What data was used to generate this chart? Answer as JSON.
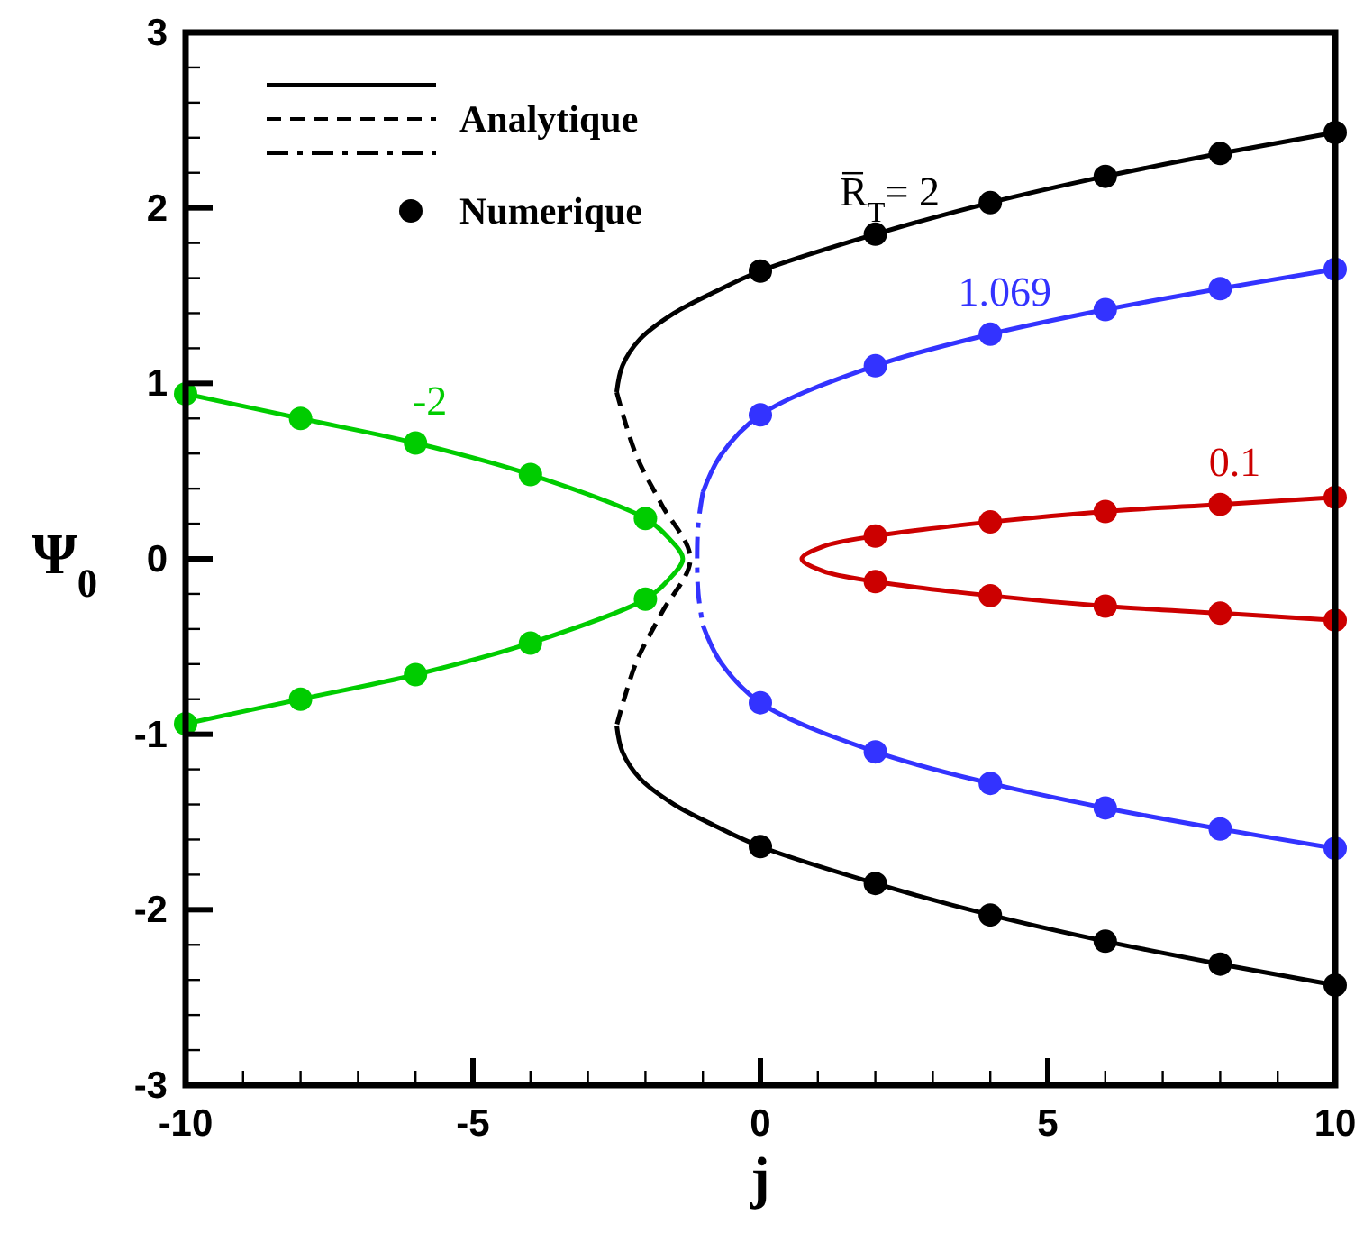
{
  "chart_data": {
    "type": "line",
    "xlabel": "j",
    "ylabel": "Ψ$_{0}$",
    "legend": "top left",
    "xlim": [
      -10,
      10
    ],
    "ylim": [
      -3,
      3
    ],
    "xticks": [
      -10,
      {
        "value": -9,
        "label": null
      },
      {
        "value": -8,
        "label": null
      },
      {
        "value": -7,
        "label": null
      },
      {
        "value": -6,
        "label": null
      },
      -5,
      {
        "value": -4,
        "label": null
      },
      {
        "value": -3,
        "label": null
      },
      {
        "value": -2,
        "label": null
      },
      {
        "value": -1,
        "label": null
      },
      0,
      {
        "value": 1,
        "label": null
      },
      {
        "value": 2,
        "label": null
      },
      {
        "value": 3,
        "label": null
      },
      {
        "value": 4,
        "label": null
      },
      5,
      {
        "value": 6,
        "label": null
      },
      {
        "value": 7,
        "label": null
      },
      {
        "value": 8,
        "label": null
      },
      {
        "value": 9,
        "label": null
      },
      10
    ],
    "yticks": [
      -3,
      {
        "value": -2.8,
        "label": null
      },
      {
        "value": -2.6,
        "label": null
      },
      {
        "value": -2.4,
        "label": null
      },
      {
        "value": -2.2,
        "label": null
      },
      -2,
      {
        "value": -1.8,
        "label": null
      },
      {
        "value": -1.6,
        "label": null
      },
      {
        "value": -1.4,
        "label": null
      },
      {
        "value": -1.2,
        "label": null
      },
      -1,
      {
        "value": -0.8,
        "label": null
      },
      {
        "value": -0.6,
        "label": null
      },
      {
        "value": -0.4,
        "label": null
      },
      {
        "value": -0.2,
        "label": null
      },
      0,
      {
        "value": 0.2,
        "label": null
      },
      {
        "value": 0.4,
        "label": null
      },
      {
        "value": 0.6,
        "label": null
      },
      {
        "value": 0.8,
        "label": null
      },
      1,
      {
        "value": 1.2,
        "label": null
      },
      {
        "value": 1.4,
        "label": null
      },
      {
        "value": 1.6,
        "label": null
      },
      {
        "value": 1.8,
        "label": null
      },
      2,
      {
        "value": 2.2,
        "label": null
      },
      {
        "value": 2.4,
        "label": null
      },
      {
        "value": 2.6,
        "label": null
      },
      {
        "value": 2.8,
        "label": null
      },
      3
    ],
    "series": [
      {
        "line_style": "solid",
        "color": "#000000",
        "x": [
          10,
          8,
          6,
          4,
          2,
          0,
          -0.8,
          -1.5,
          -2.1,
          -2.4,
          -2.5
        ],
        "values": [
          2.43,
          2.31,
          2.18,
          2.03,
          1.85,
          1.64,
          1.52,
          1.4,
          1.25,
          1.1,
          0.95
        ]
      },
      {
        "line_style": "dashed",
        "color": "#000000",
        "x": [
          -2.5,
          -2.16,
          -1.72,
          -1.22,
          -1.72,
          -2.16,
          -2.5
        ],
        "values": [
          0.95,
          0.59,
          0.31,
          0,
          -0.31,
          -0.59,
          -0.95
        ]
      },
      {
        "line_style": "dashdot",
        "color": "#3333ff",
        "x": [
          -1.0,
          -1.08,
          -1.1,
          -1.08,
          -1.0
        ],
        "values": [
          0.38,
          0.2,
          0,
          -0.2,
          -0.38
        ]
      },
      {
        "line_style": "solid",
        "color": "#000000",
        "x": [
          -2.5,
          -2.4,
          -2.1,
          -1.5,
          -0.8,
          0,
          2,
          4,
          6,
          8,
          10
        ],
        "values": [
          -0.95,
          -1.1,
          -1.25,
          -1.4,
          -1.52,
          -1.64,
          -1.85,
          -2.03,
          -2.18,
          -2.31,
          -2.43
        ]
      },
      {
        "line_style": "solid",
        "color": "#3333ff",
        "x": [
          10,
          8,
          6,
          4,
          2,
          0,
          -0.69,
          -1.0
        ],
        "values": [
          1.65,
          1.54,
          1.42,
          1.28,
          1.1,
          0.82,
          0.59,
          0.38
        ]
      },
      {
        "line_style": "solid",
        "color": "#3333ff",
        "x": [
          -1.0,
          -0.69,
          0,
          2,
          4,
          6,
          8,
          10
        ],
        "values": [
          -0.38,
          -0.59,
          -0.82,
          -1.1,
          -1.28,
          -1.42,
          -1.54,
          -1.65
        ]
      },
      {
        "line_style": "solid",
        "color": "#cc0000",
        "x": [
          10,
          8,
          6,
          4,
          2,
          1.09,
          0.72,
          1.09,
          2,
          4,
          6,
          8,
          10
        ],
        "values": [
          0.35,
          0.31,
          0.27,
          0.21,
          0.13,
          0.07,
          0,
          -0.07,
          -0.13,
          -0.21,
          -0.27,
          -0.31,
          -0.35
        ]
      },
      {
        "line_style": "solid",
        "color": "#00cc00",
        "x": [
          -10,
          -8,
          -6,
          -4,
          -2,
          -1.6,
          -1.35,
          -1.6,
          -2,
          -4,
          -6,
          -8,
          -10
        ],
        "values": [
          0.94,
          0.8,
          0.66,
          0.48,
          0.23,
          0.12,
          0,
          -0.12,
          -0.23,
          -0.48,
          -0.66,
          -0.8,
          -0.94
        ]
      },
      {
        "name": "Numerique",
        "type": "scatter",
        "marker": "circle",
        "color": "#000000",
        "x": [
          0,
          2,
          4,
          6,
          8,
          10,
          0,
          2,
          4,
          6,
          8,
          10
        ],
        "values": [
          1.64,
          1.85,
          2.03,
          2.18,
          2.31,
          2.43,
          -1.64,
          -1.85,
          -2.03,
          -2.18,
          -2.31,
          -2.43
        ]
      },
      {
        "type": "scatter",
        "marker": "circle",
        "color": "#3333ff",
        "x": [
          0,
          2,
          4,
          6,
          8,
          10,
          0,
          2,
          4,
          6,
          8,
          10
        ],
        "values": [
          0.82,
          1.1,
          1.28,
          1.42,
          1.54,
          1.65,
          -0.82,
          -1.1,
          -1.28,
          -1.42,
          -1.54,
          -1.65
        ]
      },
      {
        "type": "scatter",
        "marker": "circle",
        "color": "#cc0000",
        "x": [
          2,
          4,
          6,
          8,
          10,
          2,
          4,
          6,
          8,
          10
        ],
        "values": [
          0.13,
          0.21,
          0.27,
          0.31,
          0.35,
          -0.13,
          -0.21,
          -0.27,
          -0.31,
          -0.35
        ]
      },
      {
        "type": "scatter",
        "marker": "circle",
        "color": "#00cc00",
        "x": [
          -10,
          -8,
          -6,
          -4,
          -2,
          -10,
          -8,
          -6,
          -4,
          -2
        ],
        "values": [
          0.94,
          0.8,
          0.66,
          0.48,
          0.23,
          -0.94,
          -0.8,
          -0.66,
          -0.48,
          -0.23
        ]
      }
    ],
    "annotations": [
      "Analytique",
      {
        "text": "R̅$_{T}$= 2",
        "x": 2,
        "y": 1.85
      },
      {
        "text": "1.069",
        "x": 4,
        "y": 1.28
      },
      {
        "text": "0.1",
        "x": 8,
        "y": 0.31
      },
      {
        "text": "-2",
        "x": -6,
        "y": 0.66
      }
    ]
  }
}
